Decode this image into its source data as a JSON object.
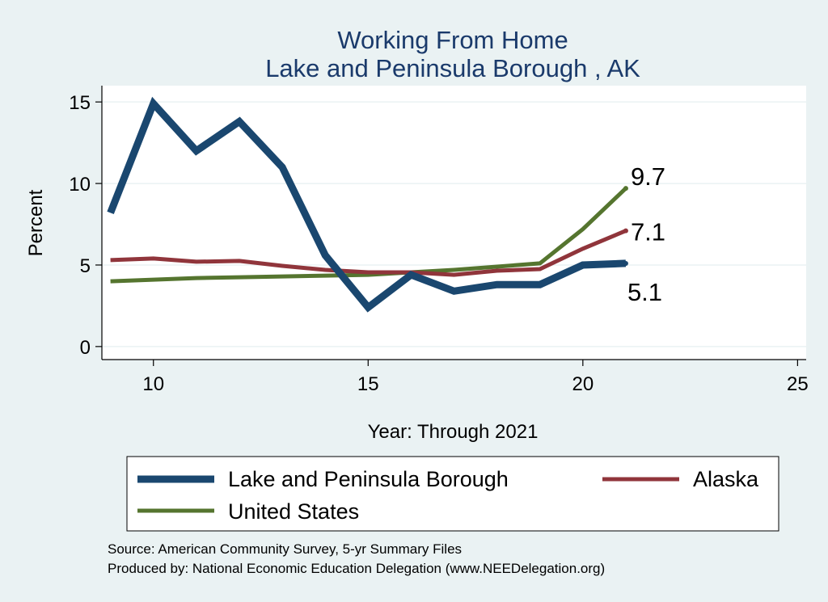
{
  "chart_data": {
    "type": "line",
    "title": [
      "Working From Home",
      "Lake and Peninsula Borough , AK"
    ],
    "xlabel": "Year: Through 2021",
    "ylabel": "Percent",
    "xlim": [
      8.8,
      25.2
    ],
    "ylim": [
      -0.8,
      16
    ],
    "xticks": [
      10,
      15,
      20,
      25
    ],
    "yticks": [
      0,
      5,
      10,
      15
    ],
    "grid": "horizontal",
    "legend_position": "bottom",
    "series": [
      {
        "name": "Lake and Peninsula Borough",
        "color": "#1a476f",
        "x": [
          9,
          10,
          11,
          12,
          13,
          14,
          15,
          16,
          17,
          18,
          19,
          20,
          21
        ],
        "values": [
          8.2,
          14.9,
          12.0,
          13.8,
          11.0,
          5.6,
          2.4,
          4.4,
          3.4,
          3.8,
          3.8,
          5.0,
          5.1
        ],
        "end_label": "5.1"
      },
      {
        "name": "Alaska",
        "color": "#90353b",
        "x": [
          9,
          10,
          11,
          12,
          13,
          14,
          15,
          16,
          17,
          18,
          19,
          20,
          21
        ],
        "values": [
          5.3,
          5.4,
          5.2,
          5.25,
          4.95,
          4.7,
          4.55,
          4.55,
          4.4,
          4.65,
          4.75,
          6.0,
          7.1
        ],
        "end_label": "7.1"
      },
      {
        "name": "United States",
        "color": "#55752f",
        "x": [
          9,
          10,
          11,
          12,
          13,
          14,
          15,
          16,
          17,
          18,
          19,
          20,
          21
        ],
        "values": [
          4.0,
          4.1,
          4.2,
          4.25,
          4.3,
          4.35,
          4.4,
          4.55,
          4.7,
          4.9,
          5.1,
          7.2,
          9.7
        ],
        "end_label": "9.7"
      }
    ]
  },
  "notes": [
    "Source: American Community Survey, 5-yr Summary Files",
    "Produced by: National Economic Education Delegation (www.NEEDelegation.org)"
  ]
}
